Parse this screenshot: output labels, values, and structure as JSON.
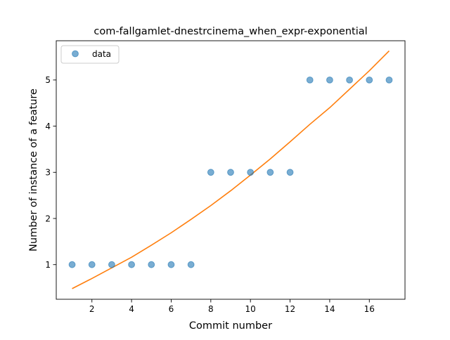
{
  "chart_data": {
    "type": "scatter",
    "title": "com-fallgamlet-dnestrcinema_when_expr-exponential",
    "xlabel": "Commit number",
    "ylabel": "Number of instance of a feature",
    "xlim": [
      0.2,
      17.8
    ],
    "ylim": [
      0.25,
      5.85
    ],
    "xticks": [
      2,
      4,
      6,
      8,
      10,
      12,
      14,
      16
    ],
    "yticks": [
      1,
      2,
      3,
      4,
      5
    ],
    "grid": false,
    "legend": {
      "position": "top-left",
      "entries": [
        "data"
      ]
    },
    "series": [
      {
        "name": "data",
        "kind": "scatter",
        "color": "#1f77b4",
        "x": [
          1,
          2,
          3,
          4,
          5,
          6,
          7,
          8,
          9,
          10,
          11,
          12,
          13,
          14,
          15,
          16,
          17
        ],
        "y": [
          1,
          1,
          1,
          1,
          1,
          1,
          1,
          3,
          3,
          3,
          3,
          3,
          5,
          5,
          5,
          5,
          5
        ]
      },
      {
        "kind": "line",
        "color": "#ff7f0e",
        "x": [
          1,
          2,
          3,
          4,
          5,
          6,
          7,
          8,
          9,
          10,
          11,
          12,
          13,
          14,
          15,
          16,
          17
        ],
        "y": [
          0.48,
          0.7,
          0.93,
          1.16,
          1.42,
          1.69,
          1.98,
          2.28,
          2.6,
          2.94,
          3.29,
          3.66,
          4.04,
          4.4,
          4.8,
          5.2,
          5.63
        ]
      }
    ]
  }
}
